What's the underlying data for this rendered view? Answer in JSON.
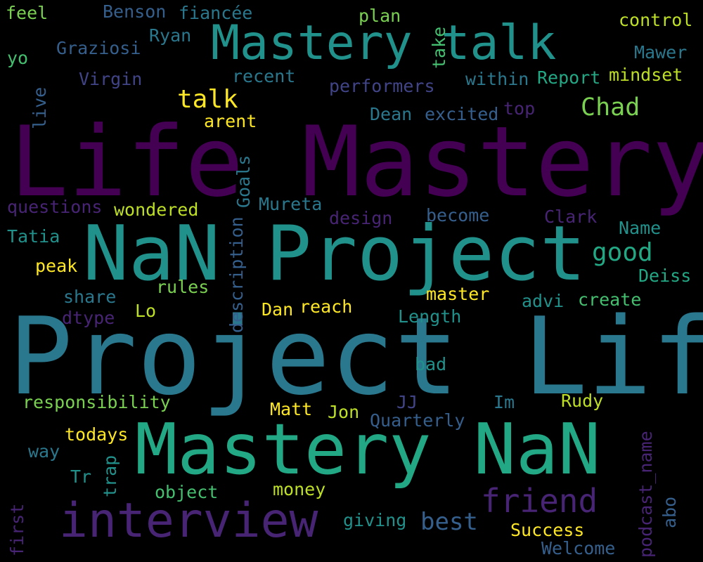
{
  "palette": {
    "dark_purple": "#440154",
    "purple": "#482475",
    "indigo": "#414487",
    "slate_blue": "#355f8d",
    "steel": "#2a788e",
    "teal": "#21918c",
    "sea_green": "#22a884",
    "green": "#44bf70",
    "lime": "#7ad151",
    "yellow_green": "#bddf26",
    "yellow": "#fde725"
  },
  "words": [
    {
      "text": "Life Mastery",
      "color": "#440154"
    },
    {
      "text": "Project Life",
      "color": "#2a788e"
    },
    {
      "text": "NaN Project",
      "color": "#21918c"
    },
    {
      "text": "Mastery NaN",
      "color": "#22a884"
    },
    {
      "text": "Mastery talk",
      "color": "#21918c"
    },
    {
      "text": "interview",
      "color": "#482475"
    },
    {
      "text": "friend",
      "color": "#482475"
    },
    {
      "text": "talk",
      "color": "#fde725"
    },
    {
      "text": "Chad",
      "color": "#7ad151"
    },
    {
      "text": "good",
      "color": "#22a884"
    },
    {
      "text": "best",
      "color": "#355f8d"
    },
    {
      "text": "feel",
      "color": "#7ad151"
    },
    {
      "text": "Benson",
      "color": "#355f8d"
    },
    {
      "text": "fiancée",
      "color": "#2a788e"
    },
    {
      "text": "plan",
      "color": "#7ad151"
    },
    {
      "text": "control",
      "color": "#bddf26"
    },
    {
      "text": "Ryan",
      "color": "#2a788e"
    },
    {
      "text": "Graziosi",
      "color": "#355f8d"
    },
    {
      "text": "yo",
      "color": "#44bf70"
    },
    {
      "text": "Mawer",
      "color": "#2a788e"
    },
    {
      "text": "take",
      "color": "#44bf70"
    },
    {
      "text": "Virgin",
      "color": "#414487"
    },
    {
      "text": "recent",
      "color": "#2a788e"
    },
    {
      "text": "within",
      "color": "#2a788e"
    },
    {
      "text": "Report",
      "color": "#22a884"
    },
    {
      "text": "mindset",
      "color": "#bddf26"
    },
    {
      "text": "performers",
      "color": "#414487"
    },
    {
      "text": "live",
      "color": "#355f8d"
    },
    {
      "text": "top",
      "color": "#482475"
    },
    {
      "text": "Dean",
      "color": "#2a788e"
    },
    {
      "text": "excited",
      "color": "#355f8d"
    },
    {
      "text": "arent",
      "color": "#fde725"
    },
    {
      "text": "questions",
      "color": "#482475"
    },
    {
      "text": "wondered",
      "color": "#bddf26"
    },
    {
      "text": "Goals",
      "color": "#2a788e"
    },
    {
      "text": "Mureta",
      "color": "#2a788e"
    },
    {
      "text": "design",
      "color": "#482475"
    },
    {
      "text": "become",
      "color": "#355f8d"
    },
    {
      "text": "Clark",
      "color": "#482475"
    },
    {
      "text": "Name",
      "color": "#21918c"
    },
    {
      "text": "Tatia",
      "color": "#21918c"
    },
    {
      "text": "description",
      "color": "#355f8d"
    },
    {
      "text": "peak",
      "color": "#fde725"
    },
    {
      "text": "Deiss",
      "color": "#22a884"
    },
    {
      "text": "share",
      "color": "#2a788e"
    },
    {
      "text": "rules",
      "color": "#7ad151"
    },
    {
      "text": "master",
      "color": "#fde725"
    },
    {
      "text": "advi",
      "color": "#21918c"
    },
    {
      "text": "create",
      "color": "#44bf70"
    },
    {
      "text": "dtype",
      "color": "#482475"
    },
    {
      "text": "Lo",
      "color": "#bddf26"
    },
    {
      "text": "Dan",
      "color": "#fde725"
    },
    {
      "text": "reach",
      "color": "#fde725"
    },
    {
      "text": "Length",
      "color": "#21918c"
    },
    {
      "text": "bad",
      "color": "#21918c"
    },
    {
      "text": "responsibility",
      "color": "#7ad151"
    },
    {
      "text": "Matt",
      "color": "#fde725"
    },
    {
      "text": "Jon",
      "color": "#bddf26"
    },
    {
      "text": "JJ",
      "color": "#414487"
    },
    {
      "text": "Im",
      "color": "#2a788e"
    },
    {
      "text": "Rudy",
      "color": "#bddf26"
    },
    {
      "text": "Quarterly",
      "color": "#355f8d"
    },
    {
      "text": "todays",
      "color": "#fde725"
    },
    {
      "text": "way",
      "color": "#2a788e"
    },
    {
      "text": "Tr",
      "color": "#21918c"
    },
    {
      "text": "trap",
      "color": "#21918c"
    },
    {
      "text": "podcast_name",
      "color": "#482475"
    },
    {
      "text": "object",
      "color": "#44bf70"
    },
    {
      "text": "money",
      "color": "#bddf26"
    },
    {
      "text": "abo",
      "color": "#355f8d"
    },
    {
      "text": "first",
      "color": "#482475"
    },
    {
      "text": "giving",
      "color": "#21918c"
    },
    {
      "text": "Success",
      "color": "#fde725"
    },
    {
      "text": "Welcome",
      "color": "#355f8d"
    }
  ]
}
